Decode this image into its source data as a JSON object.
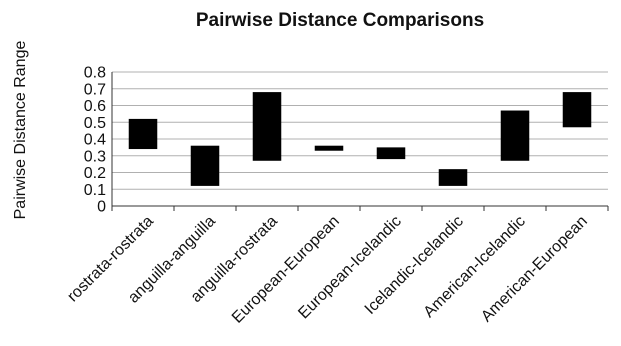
{
  "chart_data": {
    "type": "bar",
    "subtype": "floating-range",
    "title": "Pairwise Distance Comparisons",
    "xlabel": "",
    "ylabel": "Pairwise Distance Range",
    "ylim": [
      0,
      0.8
    ],
    "yticks": [
      "0",
      "0.1",
      "0.2",
      "0.3",
      "0.4",
      "0.5",
      "0.6",
      "0.7",
      "0.8"
    ],
    "grid": true,
    "legend": "none",
    "bar_color": "#000000",
    "categories": [
      "rostrata-rostrata",
      "anguilla-anguilla",
      "anguilla-rostrata",
      "European-European",
      "European-Icelandic",
      "Icelandic-Icelandic",
      "American-Icelandic",
      "American-European"
    ],
    "ranges": [
      [
        0.34,
        0.52
      ],
      [
        0.12,
        0.36
      ],
      [
        0.27,
        0.68
      ],
      [
        0.33,
        0.36
      ],
      [
        0.28,
        0.35
      ],
      [
        0.12,
        0.22
      ],
      [
        0.27,
        0.57
      ],
      [
        0.47,
        0.68
      ]
    ]
  }
}
